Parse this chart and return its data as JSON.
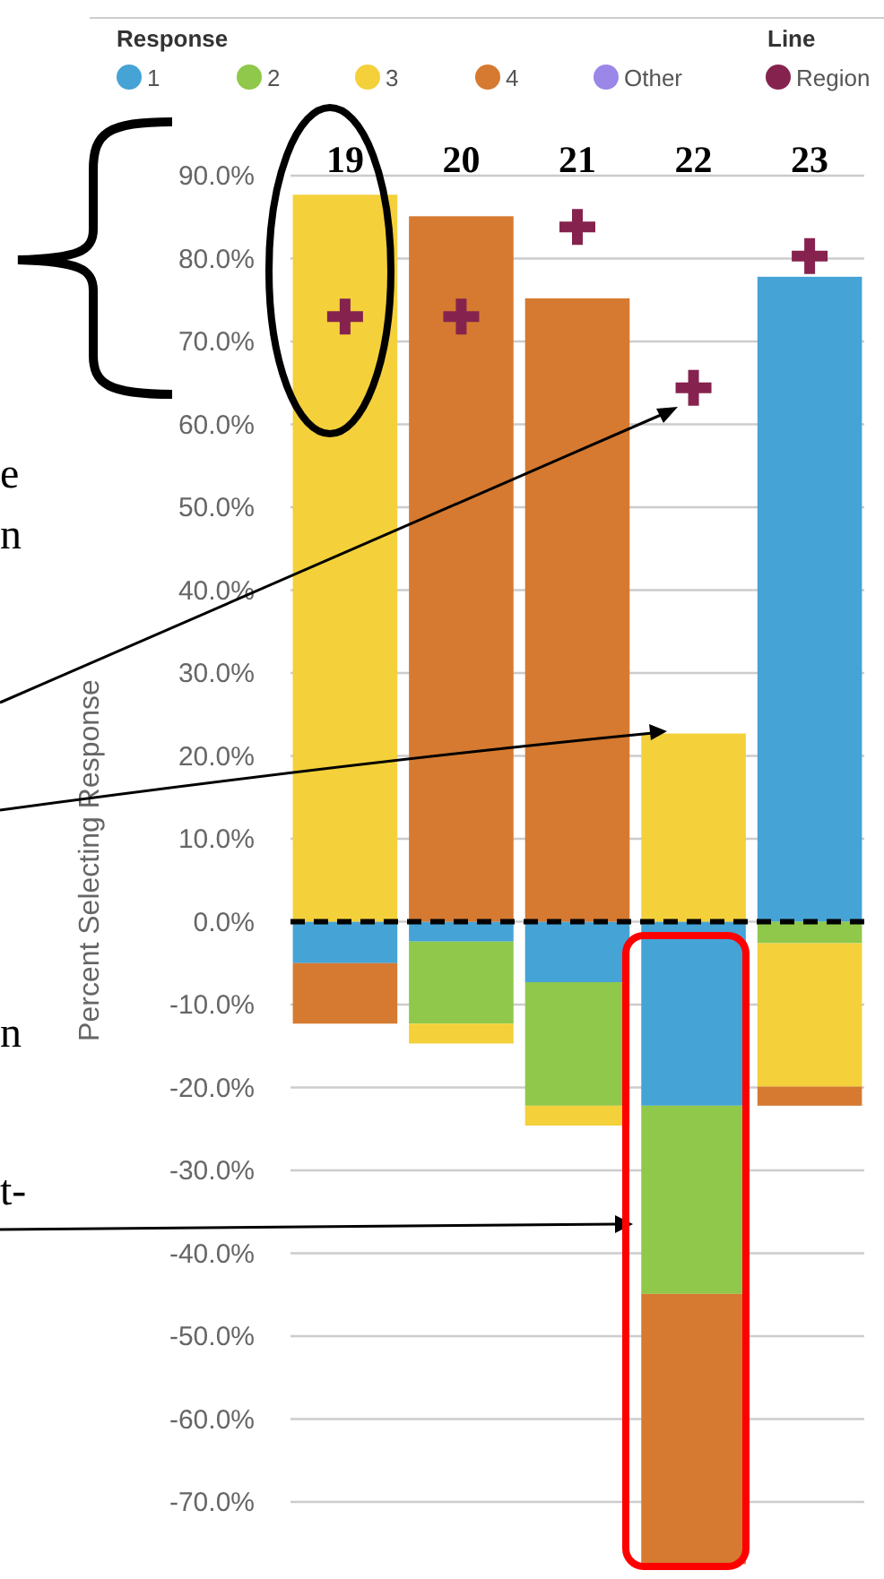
{
  "chart_data": {
    "type": "bar",
    "stacked": true,
    "ylabel": "Percent Selecting Response",
    "legend_title": "Response",
    "legend": "top",
    "categories": [
      "19",
      "20",
      "21",
      "22",
      "23"
    ],
    "series": [
      {
        "name": "1",
        "color": "#45a3d6",
        "values": [
          -5.0,
          -2.4,
          -7.3,
          -22.2,
          77.8
        ]
      },
      {
        "name": "2",
        "color": "#8fc84a",
        "values": [
          null,
          -9.9,
          -14.9,
          -22.7,
          -2.6
        ]
      },
      {
        "name": "3",
        "color": "#f4d03a",
        "values": [
          87.7,
          -2.4,
          -2.4,
          22.7,
          -17.3
        ]
      },
      {
        "name": "4",
        "color": "#d57a30",
        "values": [
          -7.3,
          85.1,
          75.2,
          -32.6,
          -2.3
        ]
      },
      {
        "name": "Other",
        "color": "#9b87e8",
        "values": [
          null,
          null,
          null,
          null,
          null
        ]
      },
      {
        "name": "Region",
        "type": "scatter",
        "marker": "cross",
        "color": "#85234e",
        "x": [
          "19",
          "20",
          "21",
          "22",
          "23"
        ],
        "values": [
          73.0,
          73.0,
          83.8,
          64.4,
          80.3
        ]
      }
    ],
    "ylim": [
      -78,
      90
    ],
    "yticks": [
      {
        "value": -70,
        "label": "-70.0%"
      },
      {
        "value": -60,
        "label": "-60.0%"
      },
      {
        "value": -50,
        "label": "-50.0%"
      },
      {
        "value": -40,
        "label": "-40.0%"
      },
      {
        "value": -30,
        "label": "-30.0%"
      },
      {
        "value": -20,
        "label": "-20.0%"
      },
      {
        "value": -10,
        "label": "-10.0%"
      },
      {
        "value": 0,
        "label": "0.0%"
      },
      {
        "value": 10,
        "label": "10.0%"
      },
      {
        "value": 20,
        "label": "20.0%"
      },
      {
        "value": 30,
        "label": "30.0%"
      },
      {
        "value": 40,
        "label": "40.0%"
      },
      {
        "value": 50,
        "label": "50.0%"
      },
      {
        "value": 60,
        "label": "60.0%"
      },
      {
        "value": 70,
        "label": "70.0%"
      },
      {
        "value": 80,
        "label": "80.0%"
      },
      {
        "value": 90,
        "label": "90.0%"
      }
    ],
    "grid": "y",
    "ref_lines": [
      {
        "axis": "y",
        "value": 0,
        "color": "#000000",
        "line_style": "dashed"
      }
    ],
    "annotations": [
      "Line",
      "e",
      "n",
      "n",
      "t-"
    ]
  }
}
